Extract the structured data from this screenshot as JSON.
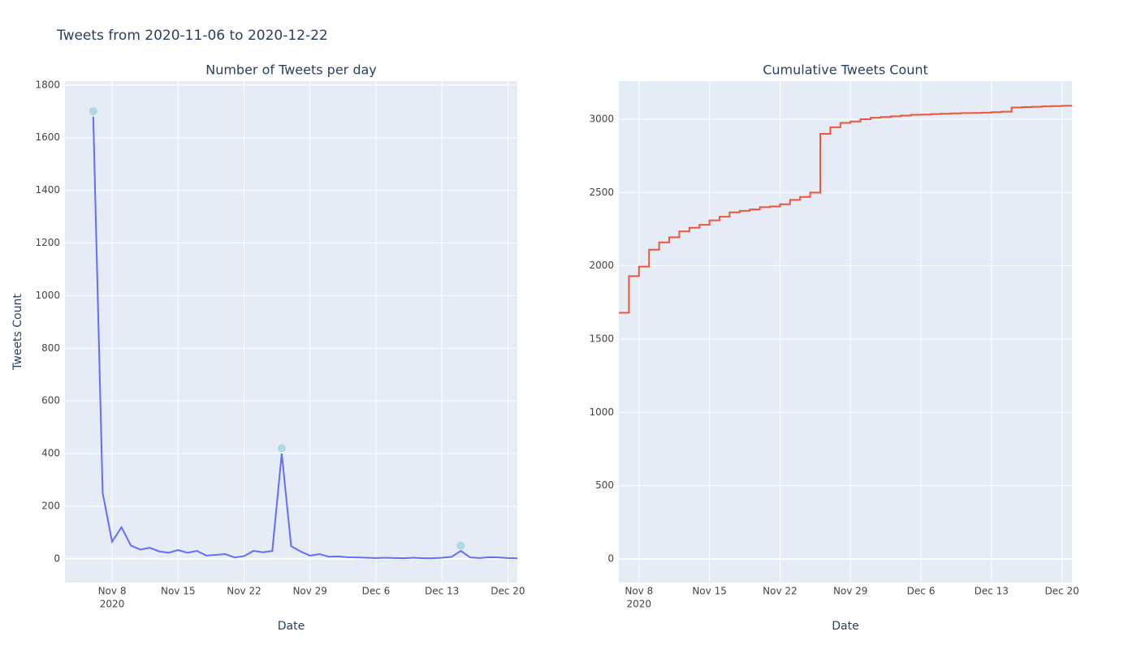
{
  "title": "Tweets from 2020-11-06 to 2020-12-22",
  "chart_data": [
    {
      "type": "line",
      "title": "Number of Tweets per day",
      "x_label": "Date",
      "y_label": "Tweets Count",
      "x_year_label": "2020",
      "x": [
        "2020-11-06",
        "2020-11-07",
        "2020-11-08",
        "2020-11-09",
        "2020-11-10",
        "2020-11-11",
        "2020-11-12",
        "2020-11-13",
        "2020-11-14",
        "2020-11-15",
        "2020-11-16",
        "2020-11-17",
        "2020-11-18",
        "2020-11-19",
        "2020-11-20",
        "2020-11-21",
        "2020-11-22",
        "2020-11-23",
        "2020-11-24",
        "2020-11-25",
        "2020-11-26",
        "2020-11-27",
        "2020-11-28",
        "2020-11-29",
        "2020-11-30",
        "2020-12-01",
        "2020-12-02",
        "2020-12-03",
        "2020-12-04",
        "2020-12-05",
        "2020-12-06",
        "2020-12-07",
        "2020-12-08",
        "2020-12-09",
        "2020-12-10",
        "2020-12-11",
        "2020-12-12",
        "2020-12-13",
        "2020-12-14",
        "2020-12-15",
        "2020-12-16",
        "2020-12-17",
        "2020-12-18",
        "2020-12-19",
        "2020-12-20",
        "2020-12-21"
      ],
      "series": [
        {
          "color": "#636efa",
          "mode": "lines",
          "values": [
            1680,
            250,
            65,
            120,
            50,
            35,
            42,
            28,
            23,
            33,
            23,
            30,
            12,
            15,
            18,
            5,
            10,
            30,
            25,
            30,
            400,
            48,
            28,
            12,
            18,
            8,
            9,
            6,
            5,
            4,
            3,
            4,
            3,
            2,
            4,
            2,
            2,
            4,
            7,
            30,
            5,
            3,
            6,
            5,
            3,
            2
          ]
        },
        {
          "color": "#add8e6",
          "mode": "markers",
          "x": [
            "2020-11-06",
            "2020-11-26",
            "2020-12-15"
          ],
          "values": [
            1700,
            420,
            50
          ]
        }
      ],
      "xlim": [
        "2020-11-03",
        "2020-12-21"
      ],
      "ylim": [
        -90,
        1815
      ],
      "xticks": [
        {
          "value": "2020-11-08",
          "label": "Nov 8"
        },
        {
          "value": "2020-11-15",
          "label": "Nov 15"
        },
        {
          "value": "2020-11-22",
          "label": "Nov 22"
        },
        {
          "value": "2020-11-29",
          "label": "Nov 29"
        },
        {
          "value": "2020-12-06",
          "label": "Dec 6"
        },
        {
          "value": "2020-12-13",
          "label": "Dec 13"
        },
        {
          "value": "2020-12-20",
          "label": "Dec 20"
        }
      ],
      "yticks": [
        0,
        200,
        400,
        600,
        800,
        1000,
        1200,
        1400,
        1600,
        1800
      ],
      "grid": true,
      "zeroline": true
    },
    {
      "type": "line",
      "title": "Cumulative Tweets Count",
      "x_label": "Date",
      "x_year_label": "2020",
      "x": [
        "2020-11-06",
        "2020-11-07",
        "2020-11-08",
        "2020-11-09",
        "2020-11-10",
        "2020-11-11",
        "2020-11-12",
        "2020-11-13",
        "2020-11-14",
        "2020-11-15",
        "2020-11-16",
        "2020-11-17",
        "2020-11-18",
        "2020-11-19",
        "2020-11-20",
        "2020-11-21",
        "2020-11-22",
        "2020-11-23",
        "2020-11-24",
        "2020-11-25",
        "2020-11-26",
        "2020-11-27",
        "2020-11-28",
        "2020-11-29",
        "2020-11-30",
        "2020-12-01",
        "2020-12-02",
        "2020-12-03",
        "2020-12-04",
        "2020-12-05",
        "2020-12-06",
        "2020-12-07",
        "2020-12-08",
        "2020-12-09",
        "2020-12-10",
        "2020-12-11",
        "2020-12-12",
        "2020-12-13",
        "2020-12-14",
        "2020-12-15",
        "2020-12-16",
        "2020-12-17",
        "2020-12-18",
        "2020-12-19",
        "2020-12-20",
        "2020-12-21"
      ],
      "series": [
        {
          "color": "#ef553b",
          "mode": "lines",
          "shape": "hv",
          "values": [
            1680,
            1930,
            1995,
            2110,
            2160,
            2195,
            2235,
            2260,
            2280,
            2310,
            2335,
            2365,
            2375,
            2385,
            2400,
            2405,
            2420,
            2450,
            2470,
            2500,
            2900,
            2945,
            2975,
            2985,
            3000,
            3010,
            3015,
            3020,
            3025,
            3030,
            3032,
            3035,
            3038,
            3040,
            3042,
            3043,
            3045,
            3048,
            3052,
            3080,
            3083,
            3085,
            3088,
            3090,
            3092,
            3092
          ]
        }
      ],
      "xlim": [
        "2020-11-06",
        "2020-12-21"
      ],
      "ylim": [
        -160,
        3260
      ],
      "xticks": [
        {
          "value": "2020-11-08",
          "label": "Nov 8"
        },
        {
          "value": "2020-11-15",
          "label": "Nov 15"
        },
        {
          "value": "2020-11-22",
          "label": "Nov 22"
        },
        {
          "value": "2020-11-29",
          "label": "Nov 29"
        },
        {
          "value": "2020-12-06",
          "label": "Dec 6"
        },
        {
          "value": "2020-12-13",
          "label": "Dec 13"
        },
        {
          "value": "2020-12-20",
          "label": "Dec 20"
        }
      ],
      "yticks": [
        0,
        500,
        1000,
        1500,
        2000,
        2500,
        3000
      ],
      "grid": true,
      "zeroline": true
    }
  ]
}
